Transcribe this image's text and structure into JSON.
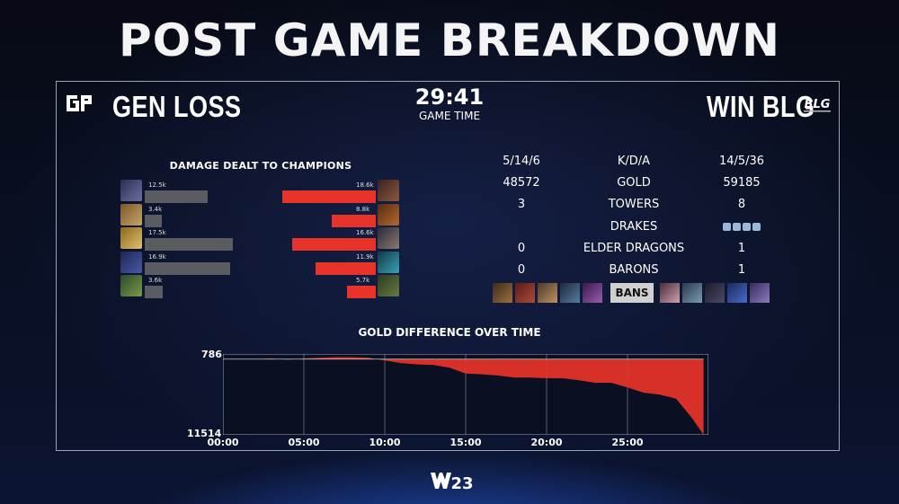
{
  "header": {
    "title": "POST GAME BREAKDOWN"
  },
  "teams": {
    "left": {
      "logo": "GEN-logo",
      "label": "GEN LOSS"
    },
    "right": {
      "logo": "BLG-logo",
      "label": "WIN BLG"
    }
  },
  "game_time": {
    "value": "29:41",
    "label": "GAME TIME"
  },
  "damage": {
    "title": "DAMAGE DEALT TO CHAMPIONS",
    "left": [
      {
        "label": "12.5k",
        "value": 12.5
      },
      {
        "label": "3.4k",
        "value": 3.4
      },
      {
        "label": "17.5k",
        "value": 17.5
      },
      {
        "label": "16.9k",
        "value": 16.9
      },
      {
        "label": "3.6k",
        "value": 3.6
      }
    ],
    "right": [
      {
        "label": "18.6k",
        "value": 18.6
      },
      {
        "label": "8.8k",
        "value": 8.8
      },
      {
        "label": "16.6k",
        "value": 16.6
      },
      {
        "label": "11.9k",
        "value": 11.9
      },
      {
        "label": "5.7k",
        "value": 5.7
      }
    ],
    "max": 25
  },
  "stats": [
    {
      "left": "5/14/6",
      "label": "K/D/A",
      "right": "14/5/36"
    },
    {
      "left": "48572",
      "label": "GOLD",
      "right": "59185"
    },
    {
      "left": "3",
      "label": "TOWERS",
      "right": "8"
    },
    {
      "left": "",
      "label": "DRAKES",
      "right": ""
    },
    {
      "left": "0",
      "label": "ELDER DRAGONS",
      "right": "1"
    },
    {
      "left": "0",
      "label": "BARONS",
      "right": "1"
    }
  ],
  "drake_icons": [
    "mountain-drake-icon",
    "cloud-drake-icon",
    "ocean-drake-icon",
    "ocean-drake-icon"
  ],
  "bans": {
    "label": "BANS"
  },
  "gold_chart": {
    "title": "GOLD DIFFERENCE OVER TIME",
    "y_top_label": "786",
    "y_bottom_label": "11514",
    "x_labels": [
      "00:00",
      "05:00",
      "10:00",
      "15:00",
      "20:00",
      "25:00"
    ]
  },
  "colors": {
    "blg": "#e8332a",
    "gen": "#5b5b62",
    "panel_border": "#9aa3b5"
  },
  "chart_data": {
    "type": "area",
    "title": "GOLD DIFFERENCE OVER TIME",
    "xlabel": "",
    "ylabel": "",
    "x_ticks": [
      "00:00",
      "05:00",
      "10:00",
      "15:00",
      "20:00",
      "25:00"
    ],
    "ylim": [
      -11514,
      786
    ],
    "x": [
      0,
      1,
      2,
      3,
      4,
      5,
      6,
      7,
      8,
      9,
      10,
      11,
      12,
      13,
      14,
      15,
      16,
      17,
      18,
      19,
      20,
      21,
      22,
      23,
      24,
      25,
      26,
      27,
      28,
      29,
      29.7
    ],
    "y": [
      0,
      0,
      0,
      100,
      -100,
      100,
      200,
      300,
      300,
      200,
      -200,
      -600,
      -800,
      -900,
      -1300,
      -2200,
      -2300,
      -2500,
      -2800,
      -2800,
      -2900,
      -2900,
      -3200,
      -3600,
      -3600,
      -4300,
      -5100,
      -5400,
      -6000,
      -9000,
      -11514
    ]
  }
}
